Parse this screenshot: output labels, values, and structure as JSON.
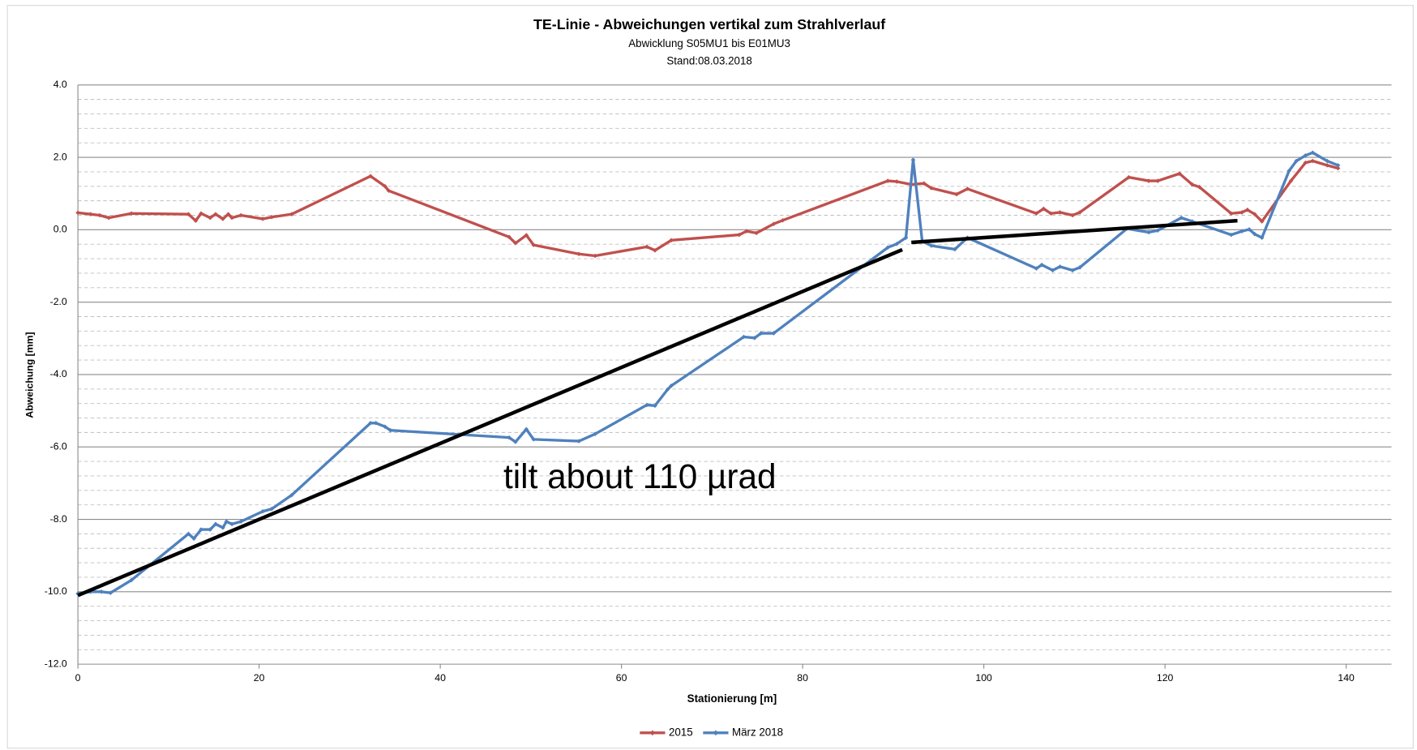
{
  "chart_data": {
    "type": "line",
    "title": "TE-Linie - Abweichungen vertikal zum Strahlverlauf",
    "subtitle": [
      "Abwicklung  S05MU1 bis  E01MU3",
      "Stand:08.03.2018"
    ],
    "x_label": "Stationierung [m]",
    "y_label": "Abweichung [mm]",
    "xlim": [
      0,
      145
    ],
    "xticks": [
      0,
      20,
      40,
      60,
      80,
      100,
      120,
      140
    ],
    "ylim": [
      -12,
      4
    ],
    "yticks": [
      {
        "value": -12,
        "label": "-12.0"
      },
      {
        "value": -10,
        "label": "-10.0"
      },
      {
        "value": -8,
        "label": "-8.0"
      },
      {
        "value": -6,
        "label": "-6.0"
      },
      {
        "value": -4,
        "label": "-4.0"
      },
      {
        "value": -2,
        "label": "-2.0"
      },
      {
        "value": 0,
        "label": "0.0"
      },
      {
        "value": 2,
        "label": "2.0"
      },
      {
        "value": 4,
        "label": "4.0"
      }
    ],
    "grid": true,
    "minor_grid_step": 0.4,
    "legend": "bottom",
    "series": [
      {
        "name": "2015",
        "color": "#c0504d",
        "x": [
          0,
          1.4,
          2.4,
          3.4,
          5.9,
          12.2,
          13,
          13.6,
          14.6,
          15.2,
          16,
          16.6,
          17,
          18,
          20.4,
          21.4,
          23.6,
          32.3,
          33.9,
          34.3,
          47.6,
          48.3,
          49.5,
          50.3,
          55.3,
          57.1,
          62.8,
          63.7,
          65.5,
          73,
          73.8,
          74.9,
          76.8,
          77.8,
          89.4,
          90.4,
          92,
          93.4,
          94.2,
          97,
          98.2,
          105.8,
          106.6,
          107.4,
          108.4,
          109.8,
          110.6,
          116,
          118.2,
          119.2,
          121.6,
          123,
          123.8,
          127.3,
          128.5,
          129.1,
          129.9,
          130.7,
          133.9,
          135.5,
          136.3,
          137.9,
          139.1
        ],
        "values": [
          0.47,
          0.43,
          0.4,
          0.33,
          0.45,
          0.43,
          0.25,
          0.45,
          0.33,
          0.43,
          0.3,
          0.43,
          0.33,
          0.4,
          0.3,
          0.35,
          0.43,
          1.48,
          1.2,
          1.08,
          -0.2,
          -0.37,
          -0.15,
          -0.42,
          -0.67,
          -0.72,
          -0.47,
          -0.57,
          -0.29,
          -0.14,
          -0.04,
          -0.09,
          0.16,
          0.26,
          1.35,
          1.33,
          1.25,
          1.28,
          1.15,
          0.98,
          1.13,
          0.45,
          0.58,
          0.45,
          0.48,
          0.4,
          0.48,
          1.45,
          1.35,
          1.35,
          1.55,
          1.25,
          1.18,
          0.45,
          0.48,
          0.55,
          0.43,
          0.23,
          1.35,
          1.85,
          1.9,
          1.78,
          1.7
        ]
      },
      {
        "name": "März 2018",
        "color": "#4f81bd",
        "x": [
          0,
          1.4,
          2.6,
          3.6,
          5.9,
          12.2,
          12.8,
          13.6,
          14.6,
          15.2,
          16,
          16.4,
          17,
          18,
          20.4,
          21.4,
          23.6,
          32.3,
          32.9,
          33.9,
          34.5,
          47.6,
          48.3,
          49.5,
          50.3,
          55.3,
          57.1,
          62.8,
          63.7,
          65.1,
          65.5,
          73.5,
          74.7,
          75.4,
          76.8,
          89.4,
          90.4,
          91.4,
          92.2,
          93.2,
          94.2,
          96.8,
          98.2,
          105.8,
          106.4,
          107.6,
          108.4,
          109.8,
          110.6,
          115.8,
          118.2,
          119.2,
          121.8,
          123,
          127.3,
          128.5,
          129.3,
          129.9,
          130.7,
          133.7,
          134.5,
          135.5,
          136.3,
          137.9,
          139.1
        ],
        "values": [
          -10.05,
          -10.0,
          -10.0,
          -10.03,
          -9.68,
          -8.4,
          -8.53,
          -8.28,
          -8.28,
          -8.13,
          -8.23,
          -8.06,
          -8.13,
          -8.06,
          -7.78,
          -7.71,
          -7.33,
          -5.34,
          -5.34,
          -5.44,
          -5.54,
          -5.74,
          -5.86,
          -5.51,
          -5.79,
          -5.84,
          -5.64,
          -4.84,
          -4.86,
          -4.41,
          -4.31,
          -2.96,
          -2.99,
          -2.86,
          -2.86,
          -0.49,
          -0.39,
          -0.22,
          1.93,
          -0.32,
          -0.44,
          -0.54,
          -0.22,
          -1.07,
          -0.97,
          -1.12,
          -1.02,
          -1.12,
          -1.04,
          0.03,
          -0.07,
          -0.02,
          0.33,
          0.23,
          -0.14,
          -0.04,
          0.01,
          -0.12,
          -0.22,
          1.63,
          1.9,
          2.05,
          2.13,
          1.9,
          1.78
        ]
      }
    ],
    "annotations": {
      "text": "tilt about 110 µrad",
      "lines": [
        {
          "color": "#000000",
          "x": [
            0,
            91
          ],
          "y": [
            -10.1,
            -0.55
          ]
        },
        {
          "color": "#000000",
          "x": [
            92,
            128
          ],
          "y": [
            -0.35,
            0.25
          ]
        }
      ]
    }
  }
}
